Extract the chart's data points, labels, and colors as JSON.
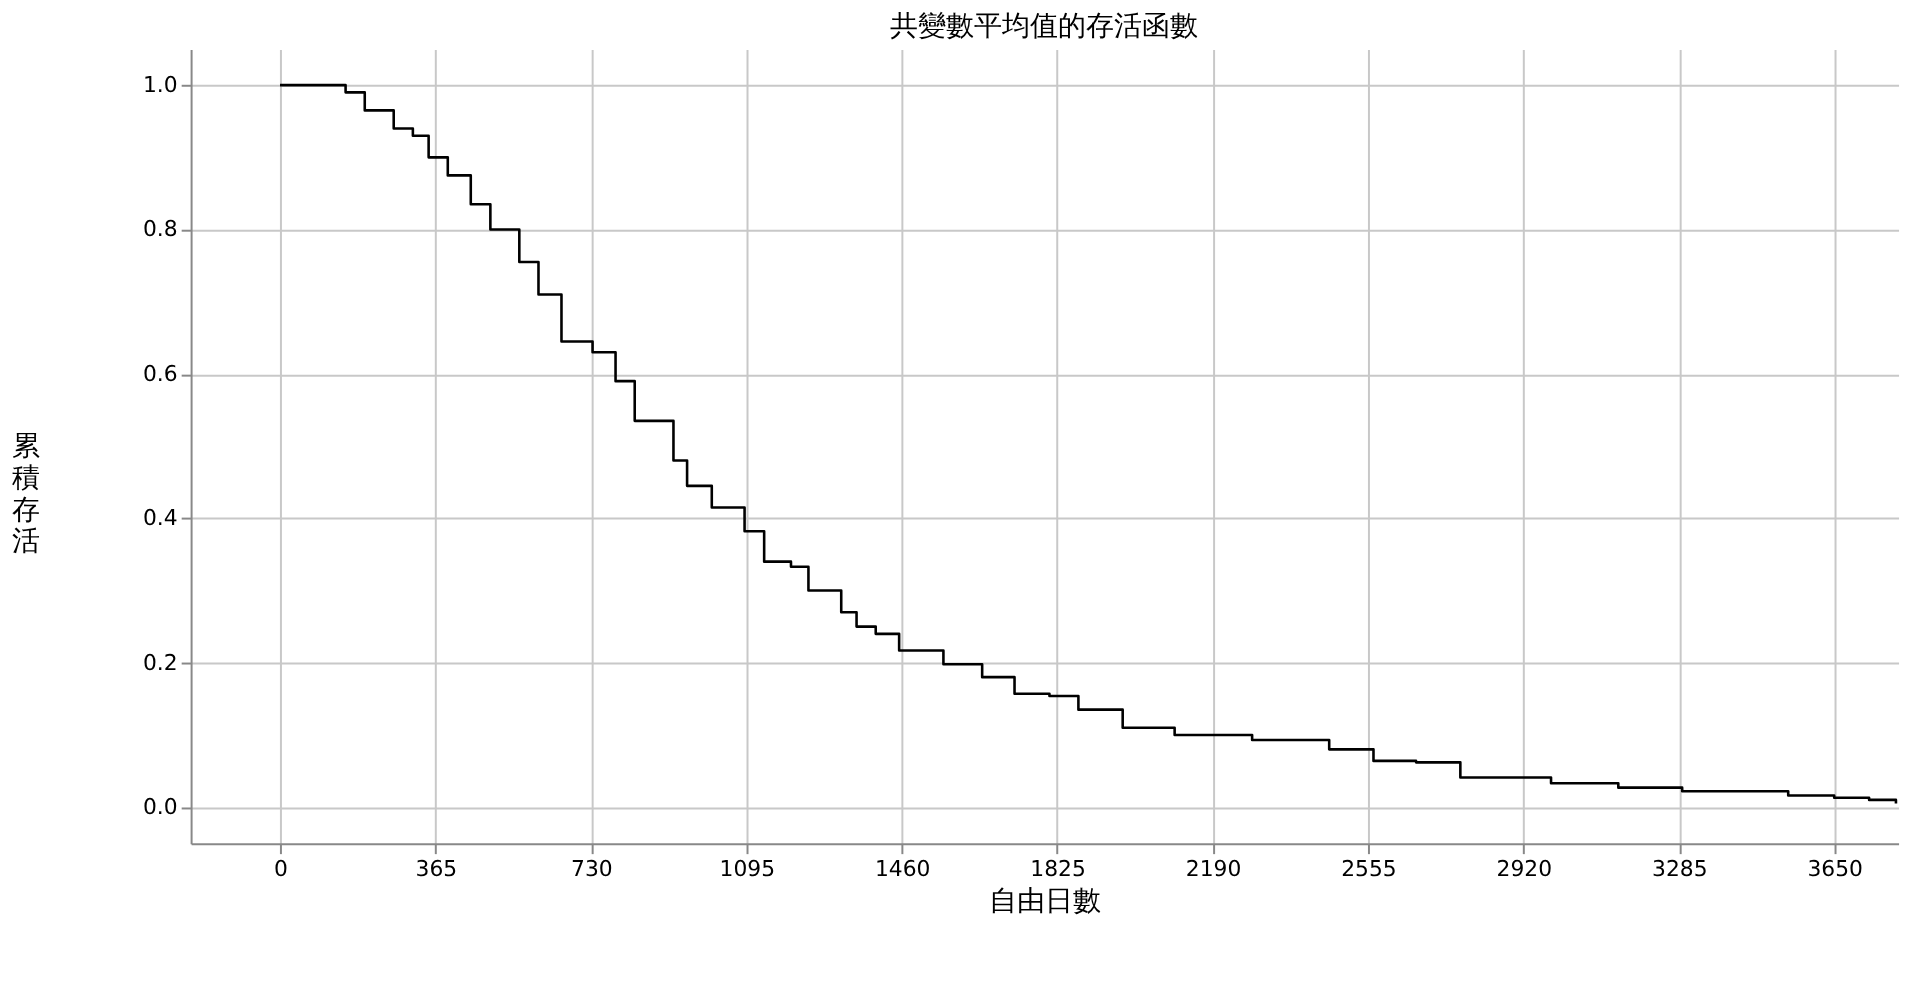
{
  "chart_data": {
    "type": "step",
    "title": "共變數平均值的存活函數",
    "xlabel": "自由日數",
    "ylabel": "累積存活",
    "xlim": [
      -210,
      3800
    ],
    "xticks": [
      0,
      365,
      730,
      1095,
      1460,
      1825,
      2190,
      2555,
      2920,
      3285,
      3650
    ],
    "ylim": [
      -0.05,
      1.05
    ],
    "yticks": [
      {
        "value": 0,
        "label": "0.0"
      },
      0.2,
      0.4,
      0.6,
      0.8,
      {
        "value": 1,
        "label": "1.0"
      }
    ],
    "grid": true,
    "line_style": "solid",
    "series": [
      {
        "color": "#000000",
        "x": [
          0,
          86,
          154,
          199,
          267,
          312,
          349,
          394,
          448,
          494,
          562,
          607,
          661,
          734,
          788,
          833,
          924,
          956,
          1014,
          1091,
          1137,
          1200,
          1241,
          1318,
          1354,
          1399,
          1454,
          1558,
          1649,
          1725,
          1807,
          1875,
          1979,
          2101,
          2283,
          2464,
          2568,
          2668,
          2772,
          2917,
          2985,
          3143,
          3293,
          3542,
          3650,
          3732,
          3795
        ],
        "values": [
          1.0,
          1.0,
          0.99,
          0.965,
          0.94,
          0.93,
          0.9,
          0.875,
          0.835,
          0.8,
          0.755,
          0.71,
          0.645,
          0.63,
          0.59,
          0.535,
          0.48,
          0.445,
          0.415,
          0.382,
          0.34,
          0.333,
          0.3,
          0.27,
          0.25,
          0.24,
          0.217,
          0.198,
          0.18,
          0.157,
          0.154,
          0.135,
          0.11,
          0.1,
          0.093,
          0.08,
          0.064,
          0.062,
          0.041,
          0.041,
          0.033,
          0.027,
          0.022,
          0.016,
          0.013,
          0.01,
          0.005
        ]
      }
    ]
  }
}
